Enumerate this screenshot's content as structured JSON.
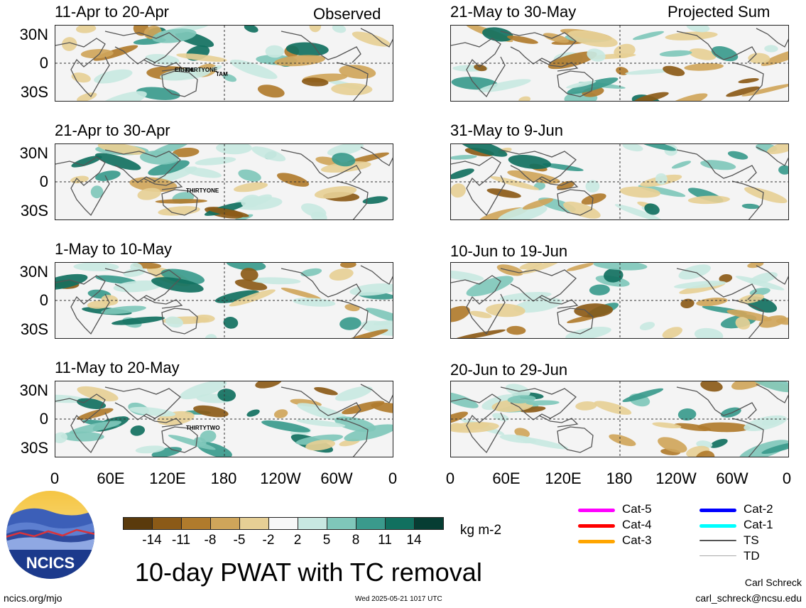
{
  "headers": {
    "left": "Observed",
    "right": "Projected Sum"
  },
  "panels_left": [
    {
      "title": "11-Apr to 20-Apr",
      "storms": [
        "ERROL",
        "THIRTYONE",
        "TAM"
      ]
    },
    {
      "title": "21-Apr to 30-Apr",
      "storms": [
        "THIRTYONE"
      ]
    },
    {
      "title": "1-May to 10-May",
      "storms": []
    },
    {
      "title": "11-May to 20-May",
      "storms": [
        "THIRTYTWO"
      ]
    }
  ],
  "panels_right": [
    {
      "title": "21-May to 30-May"
    },
    {
      "title": "31-May to 9-Jun"
    },
    {
      "title": "10-Jun to 19-Jun"
    },
    {
      "title": "20-Jun to 29-Jun"
    }
  ],
  "lat_labels": [
    "30N",
    "0",
    "30S"
  ],
  "lon_labels": [
    "0",
    "60E",
    "120E",
    "180",
    "120W",
    "60W",
    "0"
  ],
  "colorbar": {
    "ticks": [
      "-14",
      "-11",
      "-8",
      "-5",
      "-2",
      "2",
      "5",
      "8",
      "11",
      "14"
    ],
    "colors": [
      "#5a3a0c",
      "#8b5a17",
      "#b07b2c",
      "#cfa55a",
      "#e6cf95",
      "#f7f7f7",
      "#c8e8e1",
      "#7fc7ba",
      "#3a9a8c",
      "#11705f",
      "#063d33"
    ],
    "unit": "kg m-2"
  },
  "legend": [
    {
      "label": "Cat-5",
      "color": "#ff00ff"
    },
    {
      "label": "Cat-4",
      "color": "#ff0000"
    },
    {
      "label": "Cat-3",
      "color": "#ffa500"
    },
    {
      "label": "Cat-2",
      "color": "#0000ff"
    },
    {
      "label": "Cat-1",
      "color": "#00ffff"
    },
    {
      "label": "TS",
      "color": "#555555"
    },
    {
      "label": "TD",
      "color": "#aaaaaa"
    }
  ],
  "logo_text": "NCICS",
  "main_title": "10-day PWAT with TC removal",
  "footer": {
    "url": "ncics.org/mjo",
    "timestamp": "Wed 2025-05-21 1017 UTC",
    "author": "Carl Schreck",
    "email": "carl_schreck@ncsu.edu"
  }
}
